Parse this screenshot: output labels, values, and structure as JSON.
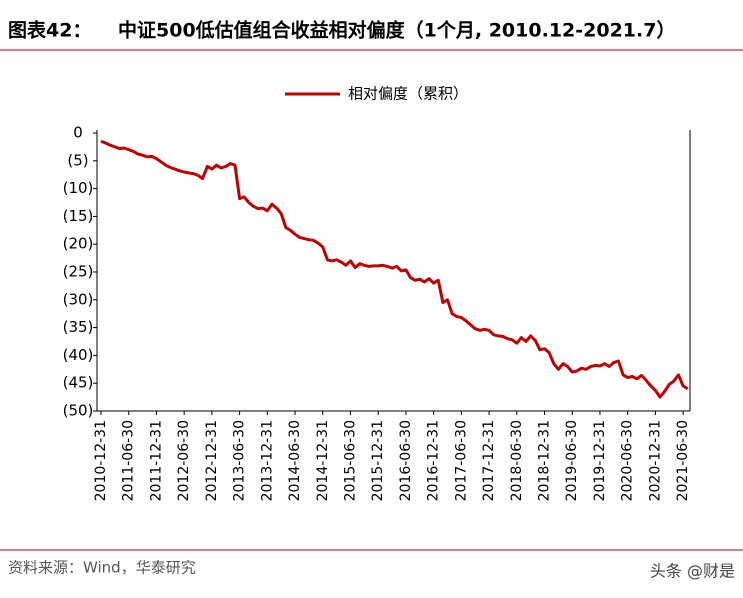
{
  "header_label": "图表42：",
  "source": "资料来源：Wind，华泰研究",
  "watermark": "头条 @财是",
  "chart_data": {
    "type": "line",
    "title": "中证500低估值组合收益相对偏度（1个月, 2010.12-2021.7）",
    "categories": [
      "2010-12-31",
      null,
      null,
      null,
      null,
      null,
      "2011-06-30",
      null,
      null,
      null,
      null,
      null,
      "2011-12-31",
      null,
      null,
      null,
      null,
      null,
      "2012-06-30",
      null,
      null,
      null,
      null,
      null,
      "2012-12-31",
      null,
      null,
      null,
      null,
      null,
      "2013-06-30",
      null,
      null,
      null,
      null,
      null,
      "2013-12-31",
      null,
      null,
      null,
      null,
      null,
      "2014-06-30",
      null,
      null,
      null,
      null,
      null,
      "2014-12-31",
      null,
      null,
      null,
      null,
      null,
      "2015-06-30",
      null,
      null,
      null,
      null,
      null,
      "2015-12-31",
      null,
      null,
      null,
      null,
      null,
      "2016-06-30",
      null,
      null,
      null,
      null,
      null,
      "2016-12-31",
      null,
      null,
      null,
      null,
      null,
      "2017-06-30",
      null,
      null,
      null,
      null,
      null,
      "2017-12-31",
      null,
      null,
      null,
      null,
      null,
      "2018-06-30",
      null,
      null,
      null,
      null,
      null,
      "2018-12-31",
      null,
      null,
      null,
      null,
      null,
      "2019-06-30",
      null,
      null,
      null,
      null,
      null,
      "2019-12-31",
      null,
      null,
      null,
      null,
      null,
      "2020-06-30",
      null,
      null,
      null,
      null,
      null,
      "2020-12-31",
      null,
      null,
      null,
      null,
      null,
      "2021-06-30",
      null
    ],
    "series": [
      {
        "name": "相对偏度（累积）",
        "color": "#c00000",
        "values": [
          -1.5,
          -1.8,
          -2.2,
          -2.5,
          -2.8,
          -2.7,
          -3.0,
          -3.3,
          -3.8,
          -4.0,
          -4.3,
          -4.2,
          -4.6,
          -5.2,
          -5.8,
          -6.2,
          -6.5,
          -6.8,
          -7.0,
          -7.2,
          -7.3,
          -7.6,
          -8.2,
          -6.0,
          -6.5,
          -5.8,
          -6.3,
          -6.0,
          -5.5,
          -5.8,
          -11.8,
          -11.5,
          -12.5,
          -13.2,
          -13.6,
          -13.5,
          -14.0,
          -12.8,
          -13.5,
          -14.5,
          -17.0,
          -17.5,
          -18.2,
          -18.8,
          -19.0,
          -19.2,
          -19.3,
          -19.8,
          -20.5,
          -22.8,
          -23.0,
          -22.8,
          -23.2,
          -23.8,
          -23.0,
          -24.2,
          -23.5,
          -23.8,
          -24.0,
          -23.9,
          -23.9,
          -23.8,
          -24.0,
          -24.3,
          -24.0,
          -24.8,
          -24.6,
          -26.0,
          -26.5,
          -26.3,
          -26.8,
          -26.2,
          -27.0,
          -26.5,
          -30.5,
          -30.0,
          -32.5,
          -33.0,
          -33.2,
          -33.8,
          -34.5,
          -35.2,
          -35.5,
          -35.3,
          -35.5,
          -36.3,
          -36.5,
          -36.6,
          -37.0,
          -37.2,
          -37.8,
          -36.8,
          -37.5,
          -36.5,
          -37.3,
          -39.0,
          -38.8,
          -39.5,
          -41.5,
          -42.5,
          -41.5,
          -42.0,
          -43.0,
          -42.8,
          -42.3,
          -42.5,
          -42.0,
          -41.8,
          -41.9,
          -41.5,
          -42.0,
          -41.3,
          -41.0,
          -43.5,
          -44.0,
          -43.8,
          -44.2,
          -43.6,
          -44.5,
          -45.5,
          -46.3,
          -47.5,
          -46.5,
          -45.2,
          -44.6,
          -43.5,
          -45.5,
          -46.0
        ]
      }
    ],
    "ylim": [
      -50,
      0
    ],
    "yticks": [
      0,
      {
        "value": -5,
        "label": "(5)"
      },
      {
        "value": -10,
        "label": "(10)"
      },
      {
        "value": -15,
        "label": "(15)"
      },
      {
        "value": -20,
        "label": "(20)"
      },
      {
        "value": -25,
        "label": "(25)"
      },
      {
        "value": -30,
        "label": "(30)"
      },
      {
        "value": -35,
        "label": "(35)"
      },
      {
        "value": -40,
        "label": "(40)"
      },
      {
        "value": -45,
        "label": "(45)"
      },
      {
        "value": -50,
        "label": "(50)"
      }
    ],
    "legend": "top",
    "grid": false
  }
}
